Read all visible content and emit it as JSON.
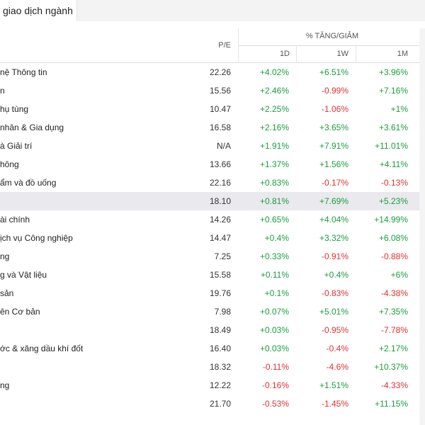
{
  "header": {
    "tab_label": "giao dịch ngành"
  },
  "table": {
    "col_pe": "P/E",
    "col_group": "% TĂNG/GIẢM",
    "col_1d": "1D",
    "col_1w": "1W",
    "col_1m": "1M",
    "rows": [
      {
        "name": "nệ Thông tin",
        "pe": "22.26",
        "d1": "+4.02%",
        "w1": "+6.51%",
        "m1": "+3.96%"
      },
      {
        "name": "n",
        "pe": "15.56",
        "d1": "+2.46%",
        "w1": "-0.99%",
        "m1": "+7.16%"
      },
      {
        "name": "hụ tùng",
        "pe": "10.47",
        "d1": "+2.25%",
        "w1": "-1.06%",
        "m1": "+1%"
      },
      {
        "name": "nhân & Gia dụng",
        "pe": "16.58",
        "d1": "+2.16%",
        "w1": "+3.65%",
        "m1": "+3.61%"
      },
      {
        "name": "à Giải trí",
        "pe": "N/A",
        "d1": "+1.91%",
        "w1": "+7.91%",
        "m1": "+11.01%"
      },
      {
        "name": "hông",
        "pe": "13.66",
        "d1": "+1.37%",
        "w1": "+1.56%",
        "m1": "+4.11%"
      },
      {
        "name": "ẩm và đồ uống",
        "pe": "22.16",
        "d1": "+0.83%",
        "w1": "-0.17%",
        "m1": "-0.13%"
      },
      {
        "name": "",
        "pe": "18.10",
        "d1": "+0.81%",
        "w1": "+7.69%",
        "m1": "+5.23%",
        "highlight": true
      },
      {
        "name": "ài chính",
        "pe": "14.26",
        "d1": "+0.65%",
        "w1": "+4.04%",
        "m1": "+14.99%"
      },
      {
        "name": "ịch vụ Công nghiệp",
        "pe": "14.47",
        "d1": "+0.4%",
        "w1": "+3.32%",
        "m1": "+6.08%"
      },
      {
        "name": "ng",
        "pe": "7.25",
        "d1": "+0.33%",
        "w1": "-0.91%",
        "m1": "-0.88%"
      },
      {
        "name": "g và Vật liệu",
        "pe": "15.58",
        "d1": "+0.11%",
        "w1": "+0.4%",
        "m1": "+6%"
      },
      {
        "name": "sản",
        "pe": "19.76",
        "d1": "+0.1%",
        "w1": "-0.83%",
        "m1": "-4.38%"
      },
      {
        "name": "ên Cơ bản",
        "pe": "7.98",
        "d1": "+0.07%",
        "w1": "+5.01%",
        "m1": "+7.35%"
      },
      {
        "name": "",
        "pe": "18.49",
        "d1": "+0.03%",
        "w1": "-0.95%",
        "m1": "-7.78%"
      },
      {
        "name": "ớc & xăng dầu khí đốt",
        "pe": "16.40",
        "d1": "+0.03%",
        "w1": "-0.4%",
        "m1": "+2.17%"
      },
      {
        "name": "",
        "pe": "18.32",
        "d1": "-0.11%",
        "w1": "-4.6%",
        "m1": "+10.37%"
      },
      {
        "name": "ng",
        "pe": "12.22",
        "d1": "-0.16%",
        "w1": "+1.51%",
        "m1": "-4.33%"
      },
      {
        "name": "",
        "pe": "21.70",
        "d1": "-0.53%",
        "w1": "-1.45%",
        "m1": "+11.15%"
      }
    ]
  },
  "colors": {
    "positive": "#1a9e3f",
    "negative": "#e03131",
    "highlight_row": "#e9e9ee"
  }
}
